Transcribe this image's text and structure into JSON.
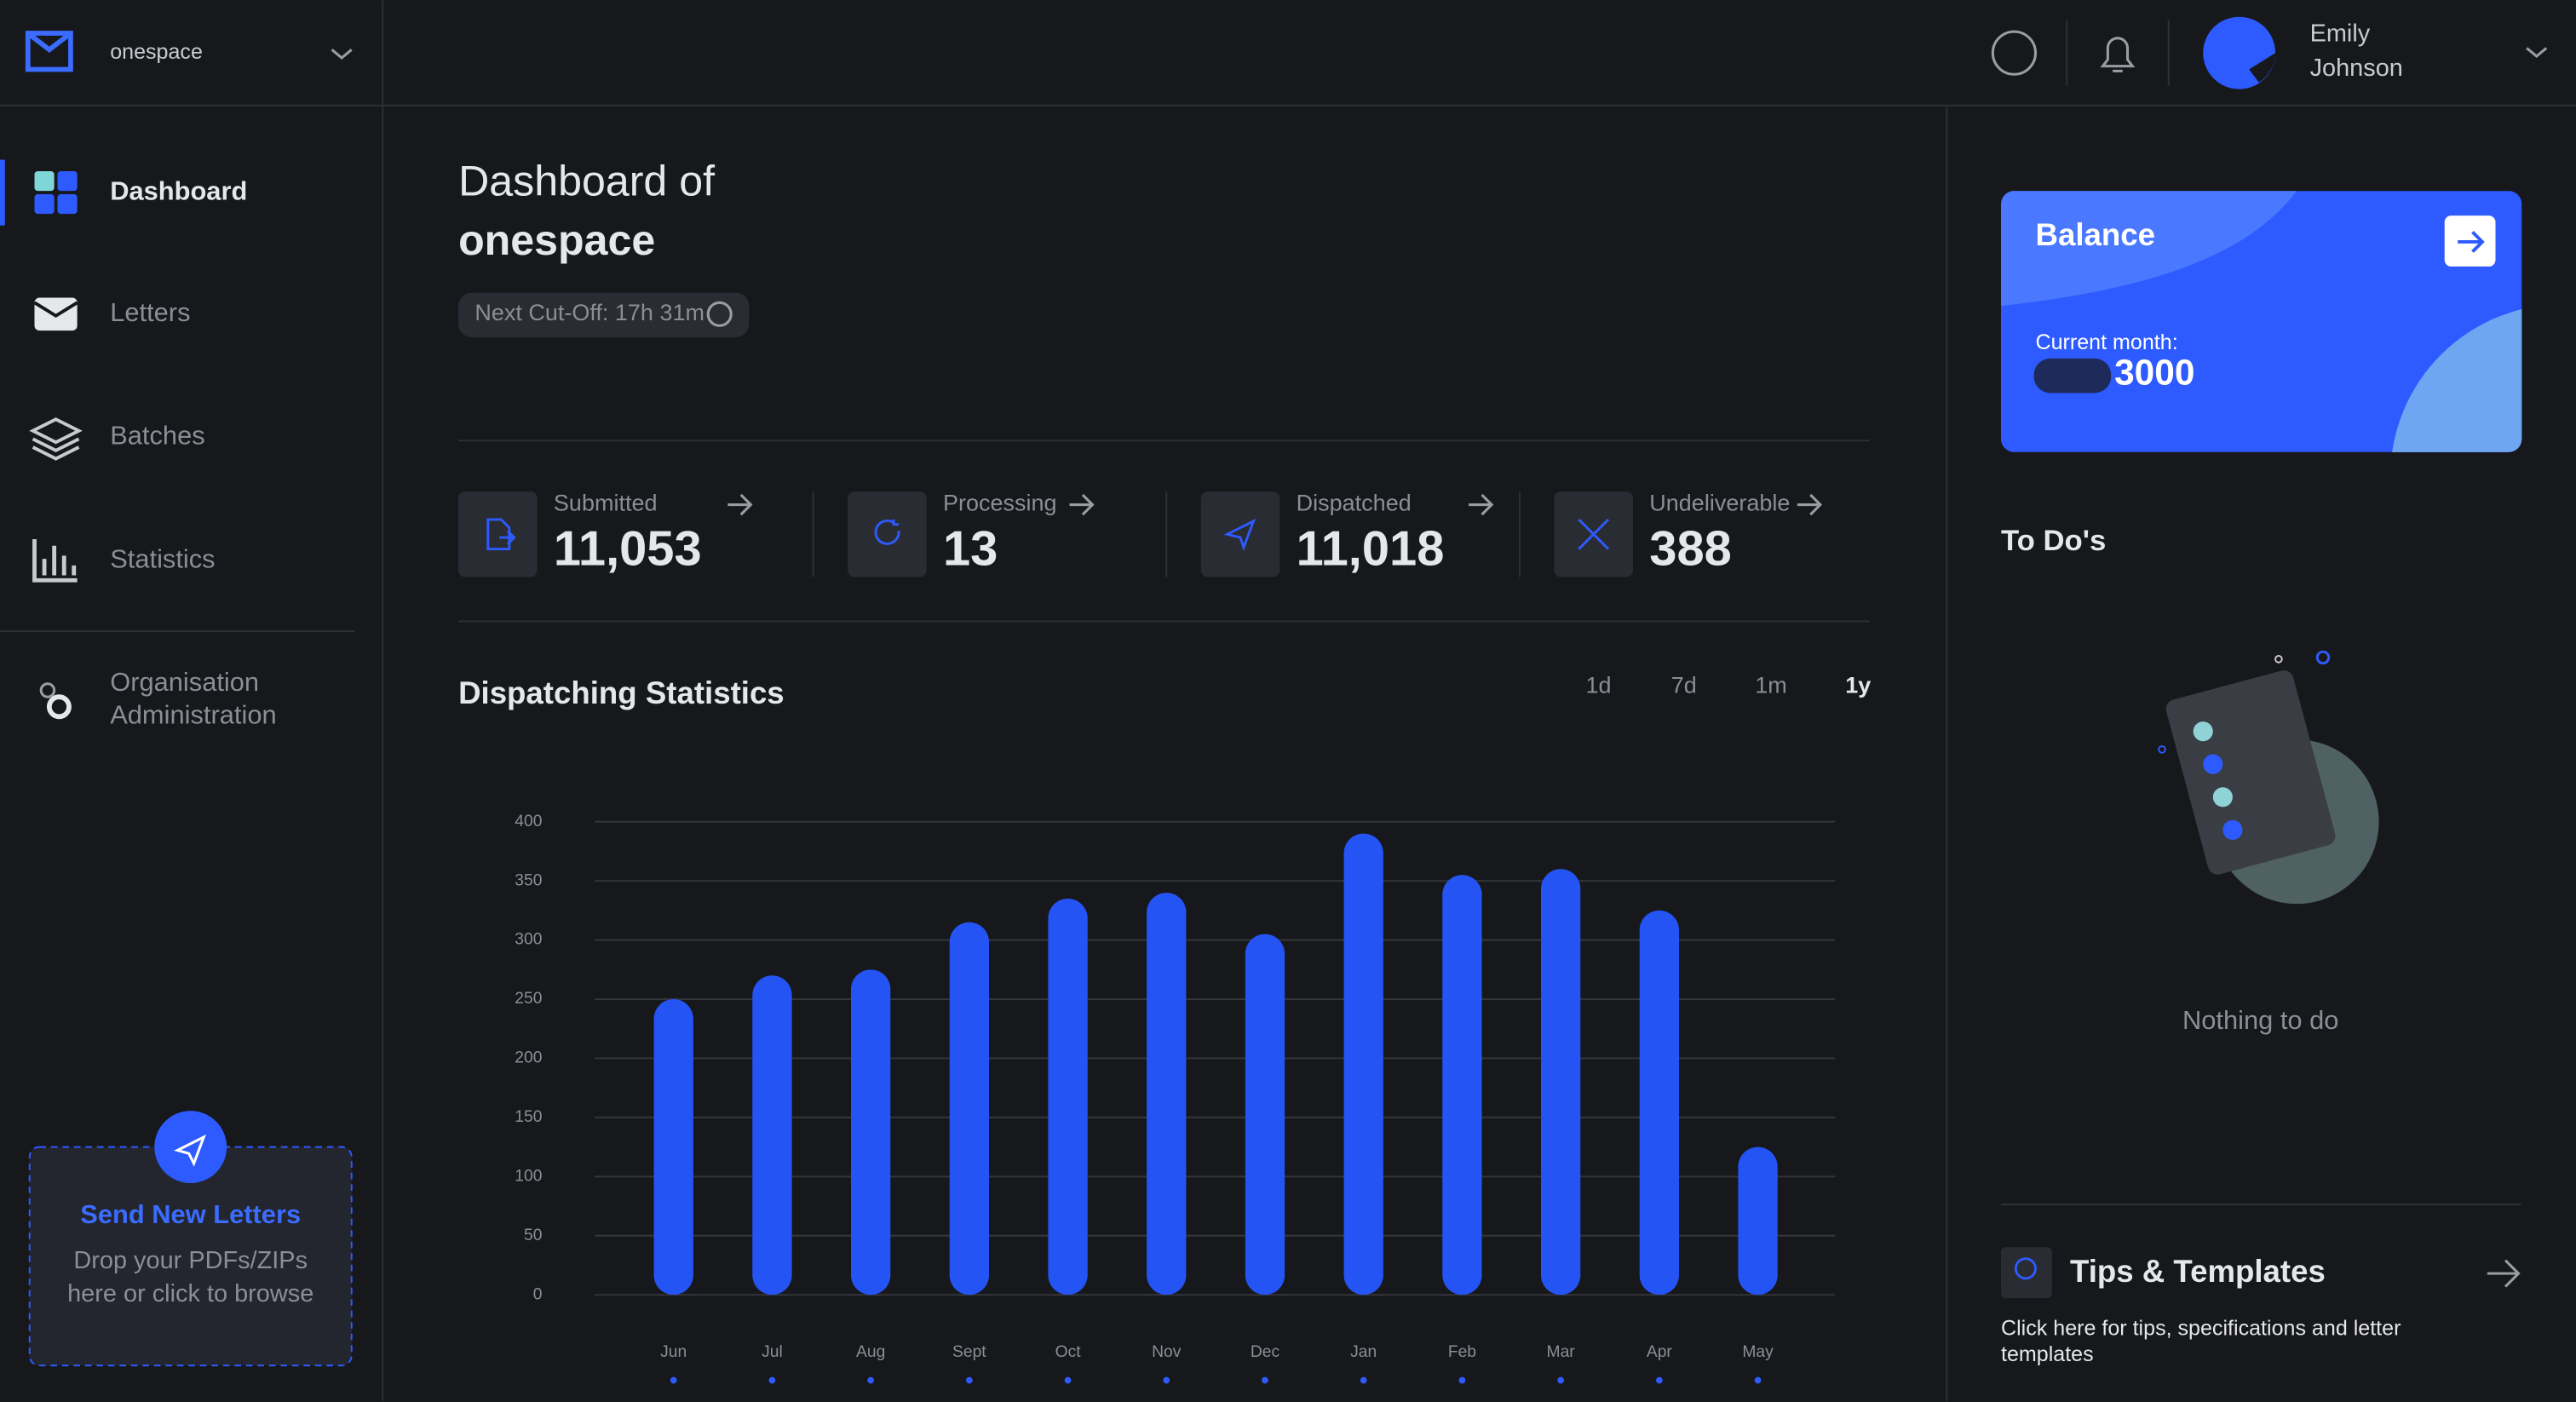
{
  "header": {
    "workspace": "onespace",
    "user_name_lines": [
      "Emily",
      "Johnson"
    ]
  },
  "sidebar": {
    "nav": [
      "Dashboard",
      "Letters",
      "Batches",
      "Statistics"
    ],
    "admin_lines": [
      "Organisation",
      "Administration"
    ],
    "upload": {
      "title": "Send New Letters",
      "lines": [
        "Drop your PDFs/ZIPs",
        "here or click to browse"
      ]
    }
  },
  "main": {
    "title_lines": [
      "Dashboard of",
      "onespace"
    ],
    "cutoff": "Next Cut-Off: 17h 31m",
    "stats": [
      {
        "label": "Submitted",
        "value": "11,053"
      },
      {
        "label": "Processing",
        "value": "13"
      },
      {
        "label": "Dispatched",
        "value": "11,018"
      },
      {
        "label": "Undeliverable",
        "value": "388"
      }
    ],
    "ranges": [
      "1d",
      "7d",
      "1m",
      "1y"
    ]
  },
  "chart_data": {
    "type": "bar",
    "title": "Dispatching Statistics",
    "color": "#2554f5",
    "categories": [
      "Jun",
      "Jul",
      "Aug",
      "Sept",
      "Oct",
      "Nov",
      "Dec",
      "Jan",
      "Feb",
      "Mar",
      "Apr",
      "May"
    ],
    "values": [
      250,
      270,
      275,
      315,
      335,
      340,
      305,
      390,
      355,
      360,
      325,
      125
    ],
    "ylim": [
      0,
      400
    ],
    "yticks": [
      0,
      50,
      100,
      150,
      200,
      250,
      300,
      350,
      400
    ],
    "grid": true
  },
  "right": {
    "balance": {
      "title": "Balance",
      "label": "Current month:",
      "amount": "3000"
    },
    "todos": {
      "title": "To Do's",
      "empty": "Nothing to do"
    },
    "tips": {
      "title": "Tips & Templates",
      "lines": [
        "Click here for tips, specifications and letter",
        "templates"
      ]
    }
  }
}
